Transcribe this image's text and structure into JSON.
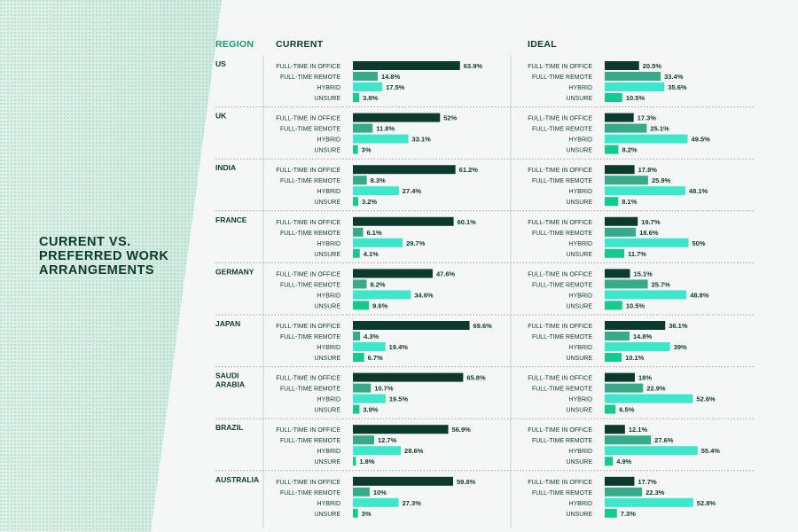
{
  "title": "CURRENT VS. PREFERRED WORK ARRANGEMENTS",
  "headers": {
    "region": "REGION",
    "current": "CURRENT",
    "ideal": "IDEAL"
  },
  "colors": {
    "full_time_in_office": "#0c3a2c",
    "full_time_remote": "#37aa8a",
    "hybrid": "#3ee6cc",
    "unsure": "#16c990",
    "header_accent": "#139b73",
    "text": "#0c3a2c"
  },
  "chart_data": {
    "type": "bar",
    "orientation": "horizontal",
    "title": "CURRENT VS. PREFERRED WORK ARRANGEMENTS",
    "panels": [
      "CURRENT",
      "IDEAL"
    ],
    "categories": [
      "FULL-TIME IN OFFICE",
      "FULL-TIME REMOTE",
      "HYBRID",
      "UNSURE"
    ],
    "unit": "%",
    "regions": [
      {
        "name": "US",
        "current": [
          63.9,
          14.8,
          17.5,
          3.8
        ],
        "ideal": [
          20.5,
          33.4,
          35.6,
          10.5
        ]
      },
      {
        "name": "UK",
        "current": [
          52,
          11.8,
          33.1,
          3
        ],
        "ideal": [
          17.3,
          25.1,
          49.5,
          8.2
        ]
      },
      {
        "name": "INDIA",
        "current": [
          61.2,
          8.3,
          27.4,
          3.2
        ],
        "ideal": [
          17.8,
          25.9,
          48.1,
          8.1
        ]
      },
      {
        "name": "FRANCE",
        "current": [
          60.1,
          6.1,
          29.7,
          4.1
        ],
        "ideal": [
          19.7,
          18.6,
          50,
          11.7
        ]
      },
      {
        "name": "GERMANY",
        "current": [
          47.6,
          8.2,
          34.6,
          9.6
        ],
        "ideal": [
          15.1,
          25.7,
          48.8,
          10.5
        ]
      },
      {
        "name": "JAPAN",
        "current": [
          69.6,
          4.3,
          19.4,
          6.7
        ],
        "ideal": [
          36.1,
          14.8,
          39,
          10.1
        ]
      },
      {
        "name": "SAUDI ARABIA",
        "current": [
          65.8,
          10.7,
          19.5,
          3.9
        ],
        "ideal": [
          18,
          22.9,
          52.6,
          6.5
        ]
      },
      {
        "name": "BRAZIL",
        "current": [
          56.9,
          12.7,
          28.6,
          1.8
        ],
        "ideal": [
          12.1,
          27.6,
          55.4,
          4.9
        ]
      },
      {
        "name": "AUSTRALIA",
        "current": [
          59.8,
          10,
          27.3,
          3
        ],
        "ideal": [
          17.7,
          22.3,
          52.8,
          7.3
        ]
      }
    ]
  }
}
